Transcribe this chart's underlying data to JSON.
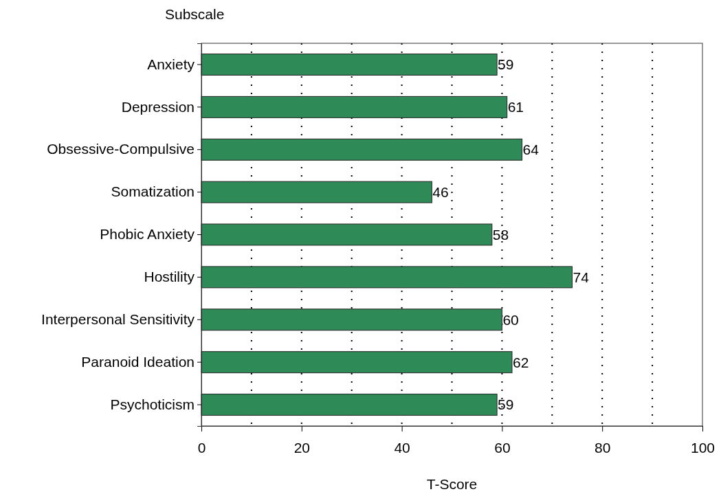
{
  "chart_data": {
    "type": "bar",
    "orientation": "horizontal",
    "ylabel": "Subscale",
    "xlabel": "T-Score",
    "categories": [
      "Anxiety",
      "Depression",
      "Obsessive-Compulsive",
      "Somatization",
      "Phobic Anxiety",
      "Hostility",
      "Interpersonal Sensitivity",
      "Paranoid Ideation",
      "Psychoticism"
    ],
    "values": [
      59,
      61,
      64,
      46,
      58,
      74,
      60,
      62,
      59
    ],
    "color": "#2e8b57",
    "data_labels": true,
    "xlim": [
      0,
      100
    ],
    "xticks": [
      0,
      {
        "value": 10,
        "label": null
      },
      20,
      {
        "value": 30,
        "label": null
      },
      40,
      {
        "value": 50,
        "label": null
      },
      60,
      {
        "value": 70,
        "label": null
      },
      80,
      {
        "value": 90,
        "label": null
      },
      100
    ],
    "grid": "x"
  }
}
